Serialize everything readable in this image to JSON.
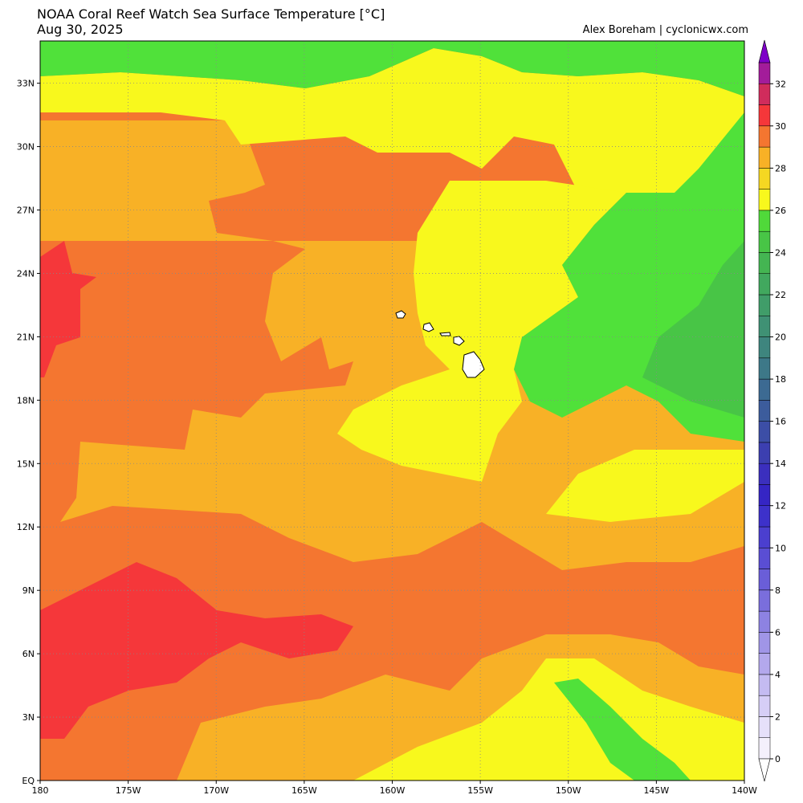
{
  "header": {
    "title_line1": "NOAA Coral Reef Watch Sea Surface Temperature [°C]",
    "title_line2": "Aug 30, 2025",
    "credit": "Alex Boreham | cyclonicwx.com"
  },
  "map": {
    "lon_range": [
      -180,
      -140
    ],
    "lat_range": [
      0,
      35
    ],
    "lon_ticks": [
      {
        "value": -180,
        "label": "180"
      },
      {
        "value": -175,
        "label": "175W"
      },
      {
        "value": -170,
        "label": "170W"
      },
      {
        "value": -165,
        "label": "165W"
      },
      {
        "value": -160,
        "label": "160W"
      },
      {
        "value": -155,
        "label": "155W"
      },
      {
        "value": -150,
        "label": "150W"
      },
      {
        "value": -145,
        "label": "145W"
      },
      {
        "value": -140,
        "label": "140W"
      }
    ],
    "lat_ticks": [
      {
        "value": 0,
        "label": "EQ"
      },
      {
        "value": 3,
        "label": "3N"
      },
      {
        "value": 6,
        "label": "6N"
      },
      {
        "value": 9,
        "label": "9N"
      },
      {
        "value": 12,
        "label": "12N"
      },
      {
        "value": 15,
        "label": "15N"
      },
      {
        "value": 18,
        "label": "18N"
      },
      {
        "value": 21,
        "label": "21N"
      },
      {
        "value": 24,
        "label": "24N"
      },
      {
        "value": 27,
        "label": "27N"
      },
      {
        "value": 30,
        "label": "30N"
      },
      {
        "value": 33,
        "label": "33N"
      }
    ],
    "gridlines": true
  },
  "colorbar": {
    "min": 0,
    "max": 32,
    "step": 1,
    "tick_labels": [
      "0",
      "2",
      "4",
      "6",
      "8",
      "10",
      "12",
      "14",
      "16",
      "18",
      "20",
      "22",
      "24",
      "26",
      "28",
      "30",
      "32"
    ],
    "colors": [
      "#f4f0fc",
      "#e6e0fa",
      "#d6cef6",
      "#c4bbf1",
      "#b3a8ec",
      "#a095e7",
      "#8d82e2",
      "#7a6edc",
      "#6a5ed8",
      "#5a4ed4",
      "#4b3fcf",
      "#3d31ca",
      "#3525c4",
      "#3b2fbe",
      "#3c3fb0",
      "#3c4ea6",
      "#3c5c9c",
      "#3c6a92",
      "#3d7888",
      "#3e857e",
      "#3f9174",
      "#409d69",
      "#41a85e",
      "#44b552",
      "#48c546",
      "#50d93a",
      "#f8f81d",
      "#f5d722",
      "#f8b126",
      "#f47630",
      "#f5373a",
      "#d02c5c",
      "#a31c9a"
    ],
    "extend": "both"
  },
  "chart_data": {
    "type": "heatmap",
    "title": "NOAA Coral Reef Watch Sea Surface Temperature [°C]",
    "date": "Aug 30, 2025",
    "units": "°C",
    "x_axis": "longitude",
    "y_axis": "latitude",
    "xlim": [
      -180,
      -140
    ],
    "ylim": [
      0,
      35
    ],
    "color_levels": [
      0,
      32
    ],
    "regions": [
      {
        "sst_range": "24-26",
        "color": "#50e13a",
        "lon": [
          -180,
          -140
        ],
        "lat": [
          33,
          35
        ]
      },
      {
        "sst_range": "24-26",
        "color": "#50e13a",
        "lon": [
          -150,
          -140
        ],
        "lat": [
          17,
          33
        ]
      },
      {
        "sst_range": "24-26",
        "color": "#50e13a",
        "lon": [
          -148,
          -143
        ],
        "lat": [
          0,
          5
        ]
      },
      {
        "sst_range": "26-27",
        "color": "#f8f81d",
        "lon": [
          -180,
          -150
        ],
        "lat": [
          31,
          34
        ]
      },
      {
        "sst_range": "26-27",
        "color": "#f8f81d",
        "lon": [
          -158,
          -152
        ],
        "lat": [
          16,
          28
        ]
      },
      {
        "sst_range": "26-27",
        "color": "#f8f81d",
        "lon": [
          -150,
          -140
        ],
        "lat": [
          0,
          6
        ]
      },
      {
        "sst_range": "27-28",
        "color": "#f8b126",
        "lon": [
          -175,
          -140
        ],
        "lat": [
          10,
          31
        ]
      },
      {
        "sst_range": "28-29",
        "color": "#f47630",
        "lon": [
          -180,
          -165
        ],
        "lat": [
          16,
          30
        ]
      },
      {
        "sst_range": "28-29",
        "color": "#f47630",
        "lon": [
          -180,
          -140
        ],
        "lat": [
          4,
          12
        ]
      },
      {
        "sst_range": "29-30",
        "color": "#f5373a",
        "lon": [
          -180,
          -178
        ],
        "lat": [
          19,
          25
        ]
      },
      {
        "sst_range": "29-30",
        "color": "#f5373a",
        "lon": [
          -180,
          -166
        ],
        "lat": [
          1,
          10
        ]
      }
    ],
    "land": [
      {
        "name": "Kauai",
        "lon": -159.5,
        "lat": 22.1
      },
      {
        "name": "Oahu",
        "lon": -158.0,
        "lat": 21.5
      },
      {
        "name": "Maui",
        "lon": -156.3,
        "lat": 20.8
      },
      {
        "name": "Hawaii",
        "lon": -155.5,
        "lat": 19.6
      }
    ]
  }
}
